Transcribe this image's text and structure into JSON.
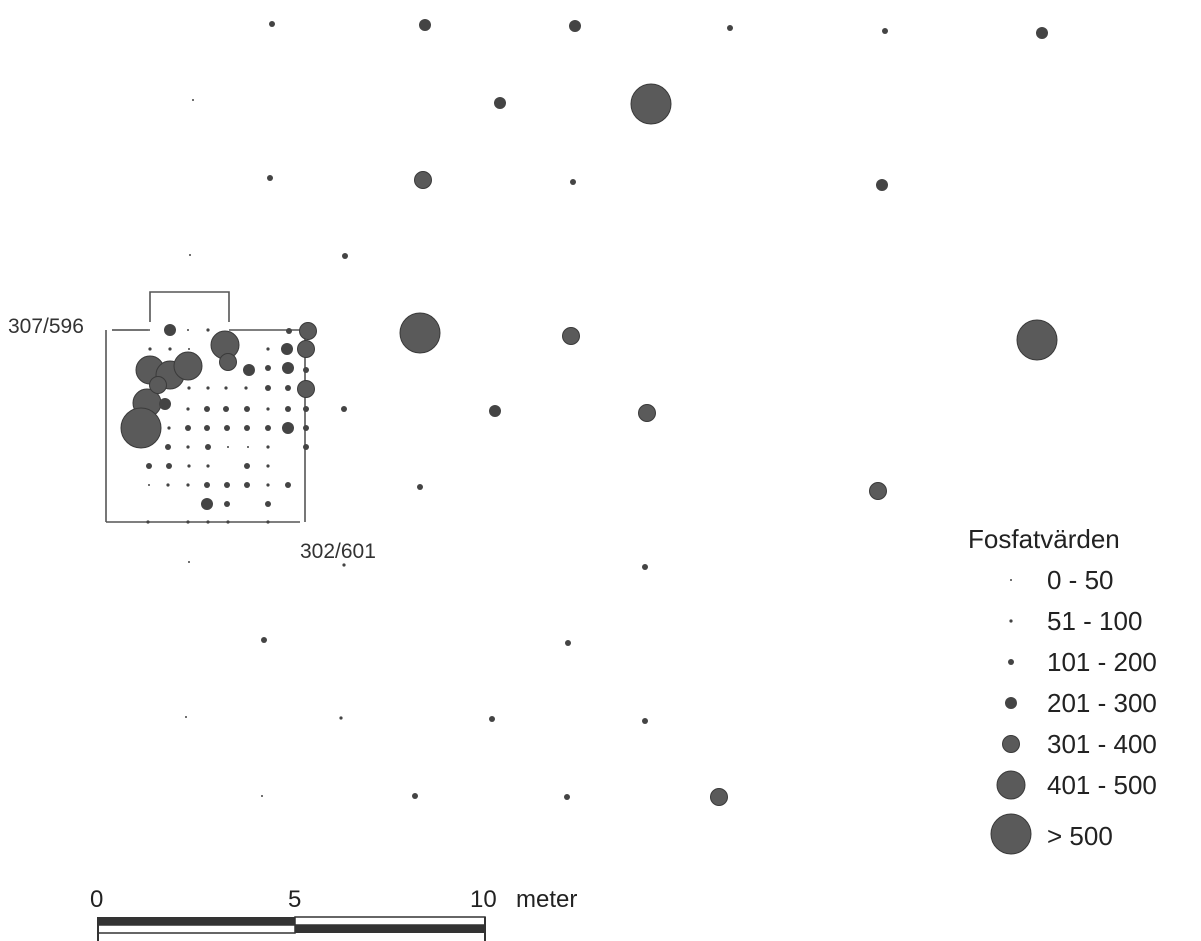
{
  "corner_labels": {
    "top_left": "307/596",
    "bottom_right": "302/601"
  },
  "legend": {
    "title": "Fosfatvärden",
    "classes": [
      "0 - 50",
      "51 - 100",
      "101 - 200",
      "201 - 300",
      "301 - 400",
      "401 - 500",
      "> 500"
    ]
  },
  "scale_bar": {
    "ticks": [
      "0",
      "5",
      "10"
    ],
    "unit": "meter"
  },
  "colors": {
    "dot": "#444444",
    "frame": "#555555"
  }
}
